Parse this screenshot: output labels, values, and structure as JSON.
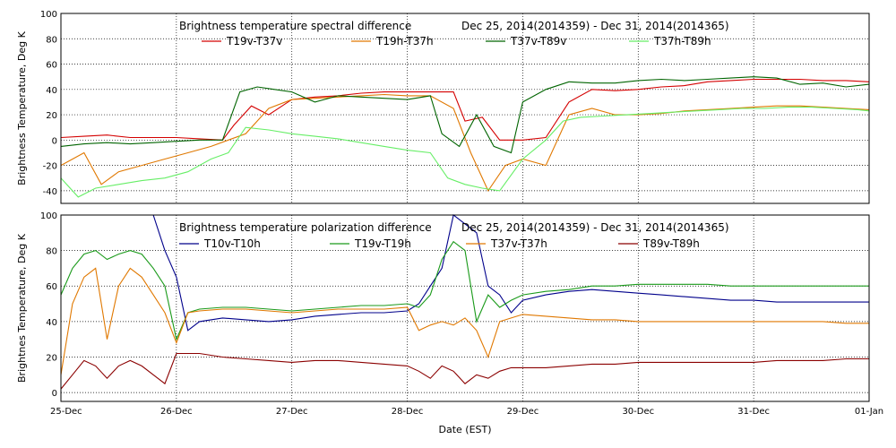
{
  "chart_data": [
    {
      "type": "line",
      "title": "Brightness temperature spectral difference",
      "date_range": "Dec 25, 2014(2014359) - Dec 31, 2014(2014365)",
      "ylabel": "Brightness Temperature, Deg K",
      "xlim": [
        0,
        7
      ],
      "ylim": [
        -50,
        100
      ],
      "yticks": [
        "-40",
        "-20",
        "0",
        "20",
        "40",
        "60",
        "80",
        "100"
      ],
      "ytick_values": [
        -40,
        -20,
        0,
        20,
        40,
        60,
        80,
        100
      ],
      "grid": true,
      "legend_placement": "top",
      "series": [
        {
          "name": "T19v-T37v",
          "color": "#d40000",
          "x": [
            0,
            0.2,
            0.4,
            0.6,
            0.8,
            1.0,
            1.2,
            1.4,
            1.5,
            1.65,
            1.8,
            2.0,
            2.2,
            2.4,
            2.6,
            2.8,
            3.0,
            3.2,
            3.4,
            3.5,
            3.65,
            3.8,
            4.0,
            4.2,
            4.4,
            4.6,
            4.8,
            5.0,
            5.2,
            5.4,
            5.6,
            5.8,
            6.0,
            6.2,
            6.4,
            6.6,
            6.8,
            7.0
          ],
          "values": [
            2,
            3,
            4,
            2,
            2,
            2,
            1,
            0,
            12,
            27,
            20,
            32,
            34,
            35,
            37,
            38,
            38,
            38,
            38,
            15,
            18,
            0,
            0,
            2,
            30,
            40,
            39,
            40,
            42,
            43,
            46,
            47,
            48,
            48,
            48,
            47,
            47,
            46
          ]
        },
        {
          "name": "T19h-T37h",
          "color": "#e07800",
          "x": [
            0,
            0.2,
            0.35,
            0.5,
            0.7,
            0.9,
            1.1,
            1.3,
            1.45,
            1.6,
            1.8,
            2.0,
            2.2,
            2.4,
            2.6,
            2.8,
            3.0,
            3.2,
            3.4,
            3.55,
            3.7,
            3.85,
            4.0,
            4.2,
            4.4,
            4.6,
            4.8,
            5.0,
            5.2,
            5.4,
            5.6,
            5.8,
            6.0,
            6.2,
            6.4,
            6.6,
            6.8,
            7.0
          ],
          "values": [
            -20,
            -10,
            -35,
            -25,
            -20,
            -15,
            -10,
            -5,
            0,
            5,
            25,
            32,
            33,
            34,
            35,
            36,
            35,
            35,
            25,
            -10,
            -40,
            -20,
            -15,
            -20,
            20,
            25,
            20,
            20,
            21,
            23,
            24,
            25,
            26,
            27,
            27,
            26,
            25,
            24
          ]
        },
        {
          "name": "T37v-T89v",
          "color": "#006400",
          "x": [
            0,
            0.2,
            0.4,
            0.6,
            0.8,
            1.0,
            1.2,
            1.4,
            1.55,
            1.7,
            1.85,
            2.0,
            2.2,
            2.4,
            2.6,
            2.8,
            3.0,
            3.2,
            3.3,
            3.45,
            3.6,
            3.75,
            3.9,
            4.0,
            4.2,
            4.4,
            4.6,
            4.8,
            5.0,
            5.2,
            5.4,
            5.6,
            5.8,
            6.0,
            6.2,
            6.4,
            6.6,
            6.8,
            7.0
          ],
          "values": [
            -5,
            -3,
            -2,
            -3,
            -2,
            -1,
            0,
            0,
            38,
            42,
            40,
            38,
            30,
            35,
            34,
            33,
            32,
            35,
            5,
            -5,
            20,
            -5,
            -10,
            30,
            40,
            46,
            45,
            45,
            47,
            48,
            47,
            48,
            49,
            50,
            49,
            44,
            45,
            42,
            44
          ]
        },
        {
          "name": "T37h-T89h",
          "color": "#66ee66",
          "x": [
            0,
            0.15,
            0.3,
            0.5,
            0.7,
            0.9,
            1.1,
            1.3,
            1.45,
            1.6,
            1.8,
            2.0,
            2.2,
            2.4,
            2.6,
            2.8,
            3.0,
            3.2,
            3.35,
            3.5,
            3.65,
            3.8,
            4.0,
            4.2,
            4.35,
            4.5,
            4.7,
            4.9,
            5.1,
            5.3,
            5.5,
            5.7,
            5.9,
            6.1,
            6.3,
            6.5,
            6.7,
            6.9,
            7.0
          ],
          "values": [
            -30,
            -45,
            -38,
            -35,
            -32,
            -30,
            -25,
            -15,
            -10,
            10,
            8,
            5,
            3,
            1,
            -2,
            -5,
            -8,
            -10,
            -30,
            -35,
            -38,
            -40,
            -15,
            0,
            15,
            18,
            19,
            20,
            21,
            22,
            23,
            24,
            25,
            25,
            26,
            26,
            25,
            24,
            23
          ]
        }
      ]
    },
    {
      "type": "line",
      "title": "Brightness temperature polarization difference",
      "date_range": "Dec 25, 2014(2014359) - Dec 31, 2014(2014365)",
      "ylabel": "Brightnes Temperature, Deg K",
      "xlabel": "Date (EST)",
      "xlim": [
        0,
        7
      ],
      "ylim": [
        -5,
        100
      ],
      "yticks": [
        "0",
        "20",
        "40",
        "60",
        "80",
        "100"
      ],
      "ytick_values": [
        0,
        20,
        40,
        60,
        80,
        100
      ],
      "xticks": [
        "25-Dec",
        "26-Dec",
        "27-Dec",
        "28-Dec",
        "29-Dec",
        "30-Dec",
        "31-Dec",
        "01-Jan"
      ],
      "xtick_values": [
        0,
        1,
        2,
        3,
        4,
        5,
        6,
        7
      ],
      "grid": true,
      "legend_placement": "top",
      "series": [
        {
          "name": "T10v-T10h",
          "color": "#00008b",
          "x": [
            0,
            0.1,
            0.2,
            0.4,
            0.6,
            0.8,
            0.9,
            1.0,
            1.1,
            1.2,
            1.4,
            1.6,
            1.8,
            2.0,
            2.2,
            2.4,
            2.6,
            2.8,
            3.0,
            3.1,
            3.2,
            3.3,
            3.4,
            3.5,
            3.6,
            3.7,
            3.8,
            3.9,
            4.0,
            4.2,
            4.4,
            4.6,
            4.8,
            5.0,
            5.2,
            5.4,
            5.6,
            5.8,
            6.0,
            6.2,
            6.4,
            6.6,
            6.8,
            7.0
          ],
          "values": [
            100,
            100,
            100,
            100,
            100,
            100,
            80,
            65,
            35,
            40,
            42,
            41,
            40,
            41,
            43,
            44,
            45,
            45,
            46,
            50,
            60,
            70,
            100,
            95,
            90,
            60,
            55,
            45,
            52,
            55,
            57,
            58,
            57,
            56,
            55,
            54,
            53,
            52,
            52,
            51,
            51,
            51,
            51,
            51
          ]
        },
        {
          "name": "T19v-T19h",
          "color": "#1a9a1a",
          "x": [
            0,
            0.1,
            0.2,
            0.3,
            0.4,
            0.5,
            0.6,
            0.7,
            0.8,
            0.9,
            1.0,
            1.1,
            1.2,
            1.4,
            1.6,
            1.8,
            2.0,
            2.2,
            2.4,
            2.6,
            2.8,
            3.0,
            3.1,
            3.2,
            3.3,
            3.4,
            3.5,
            3.6,
            3.7,
            3.8,
            3.9,
            4.0,
            4.2,
            4.4,
            4.6,
            4.8,
            5.0,
            5.2,
            5.4,
            5.6,
            5.8,
            6.0,
            6.2,
            6.4,
            6.6,
            6.8,
            7.0
          ],
          "values": [
            55,
            70,
            78,
            80,
            75,
            78,
            80,
            78,
            70,
            60,
            30,
            45,
            47,
            48,
            48,
            47,
            46,
            47,
            48,
            49,
            49,
            50,
            48,
            55,
            75,
            85,
            80,
            40,
            55,
            48,
            52,
            55,
            57,
            58,
            60,
            60,
            61,
            61,
            61,
            61,
            60,
            60,
            60,
            60,
            60,
            60,
            60
          ]
        },
        {
          "name": "T37v-T37h",
          "color": "#e07800",
          "x": [
            0,
            0.1,
            0.2,
            0.3,
            0.4,
            0.5,
            0.6,
            0.7,
            0.8,
            0.9,
            1.0,
            1.1,
            1.2,
            1.4,
            1.6,
            1.8,
            2.0,
            2.2,
            2.4,
            2.6,
            2.8,
            3.0,
            3.1,
            3.2,
            3.3,
            3.4,
            3.5,
            3.6,
            3.7,
            3.8,
            3.9,
            4.0,
            4.2,
            4.4,
            4.6,
            4.8,
            5.0,
            5.2,
            5.4,
            5.6,
            5.8,
            6.0,
            6.2,
            6.4,
            6.6,
            6.8,
            7.0
          ],
          "values": [
            10,
            50,
            65,
            70,
            30,
            60,
            70,
            65,
            55,
            45,
            28,
            45,
            46,
            47,
            47,
            46,
            45,
            46,
            47,
            47,
            47,
            48,
            35,
            38,
            40,
            38,
            42,
            35,
            20,
            40,
            42,
            44,
            43,
            42,
            41,
            41,
            40,
            40,
            40,
            40,
            40,
            40,
            40,
            40,
            40,
            39,
            39
          ]
        },
        {
          "name": "T89v-T89h",
          "color": "#8b0000",
          "x": [
            0,
            0.1,
            0.2,
            0.3,
            0.4,
            0.5,
            0.6,
            0.7,
            0.8,
            0.9,
            1.0,
            1.1,
            1.2,
            1.4,
            1.6,
            1.8,
            2.0,
            2.2,
            2.4,
            2.6,
            2.8,
            3.0,
            3.1,
            3.2,
            3.3,
            3.4,
            3.5,
            3.6,
            3.7,
            3.8,
            3.9,
            4.0,
            4.2,
            4.4,
            4.6,
            4.8,
            5.0,
            5.2,
            5.4,
            5.6,
            5.8,
            6.0,
            6.2,
            6.4,
            6.6,
            6.8,
            7.0
          ],
          "values": [
            2,
            10,
            18,
            15,
            8,
            15,
            18,
            15,
            10,
            5,
            22,
            22,
            22,
            20,
            19,
            18,
            17,
            18,
            18,
            17,
            16,
            15,
            12,
            8,
            15,
            12,
            5,
            10,
            8,
            12,
            14,
            14,
            14,
            15,
            16,
            16,
            17,
            17,
            17,
            17,
            17,
            17,
            18,
            18,
            18,
            19,
            19
          ]
        }
      ]
    }
  ]
}
